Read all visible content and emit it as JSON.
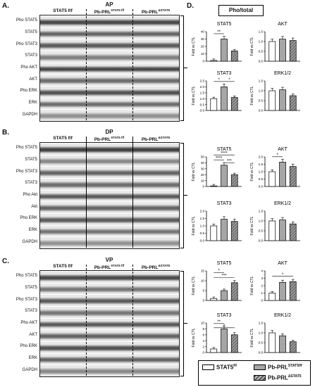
{
  "panels": {
    "A": {
      "letter": "A.",
      "tissue": "AP",
      "groups": [
        "STAT5 f/f",
        "Pb-PRL",
        "STAT5 f/f",
        "Pb-PRL",
        "ΔSTAT5"
      ],
      "rows": [
        "Pho STAT5",
        "STAT5",
        "Pho STAT3",
        "STAT3",
        "Pho AKT",
        "AKT",
        "Pho ERK",
        "ERK",
        "GAPDH"
      ]
    },
    "B": {
      "letter": "B.",
      "tissue": "DP",
      "groups": [
        "STAT5 f/f",
        "Pb-PRL",
        "STAT5 f/f",
        "Pb-PRL",
        "ΔSTAT5"
      ],
      "rows": [
        "Pho STAT5",
        "STAT5",
        "Pho STAT3",
        "STAT3",
        "Pho Akt",
        "Akt",
        "Pho ERK",
        "ERK",
        "GAPDH"
      ]
    },
    "C": {
      "letter": "C.",
      "tissue": "VP",
      "groups": [
        "STAT5 f/f",
        "Pb-PRL",
        "STAT5 f/f",
        "Pb-PRL",
        "ΔSTAT5"
      ],
      "rows": [
        "Pho STAT5",
        "STAT5",
        "Pho STAT3",
        "STAT3",
        "Pho AKT",
        "AKT",
        "Pho ERK",
        "ERK",
        "GAPDH"
      ]
    },
    "D": {
      "letter": "D.",
      "title": "Pho/total"
    }
  },
  "axis_label": "Fold vs CTL",
  "legend": {
    "ctl": "STAT5",
    "ctl_sup": "f/f",
    "stat5ff": "Pb-PRL",
    "stat5ff_sup": "STAT5f/f",
    "d": "Pb-PRL",
    "d_sup": "ΔSTAT5"
  },
  "colors": {
    "ctl": "#ffffff",
    "stat5ff": "#a6a6a6",
    "d": "#6e6e6e"
  },
  "chart_data": [
    {
      "type": "bar",
      "title": "STAT5",
      "tissue": "AP",
      "categories": [
        "STAT5 f/f",
        "Pb-PRL STAT5f/f",
        "Pb-PRL ΔSTAT5"
      ],
      "values": [
        1,
        30,
        14
      ],
      "ylim": [
        0,
        40
      ],
      "yticks": [
        0,
        10,
        20,
        30,
        40
      ],
      "sig": [
        "**"
      ]
    },
    {
      "type": "bar",
      "title": "AKT",
      "tissue": "AP",
      "categories": [
        "STAT5 f/f",
        "Pb-PRL STAT5f/f",
        "Pb-PRL ΔSTAT5"
      ],
      "values": [
        1.0,
        1.12,
        1.05
      ],
      "ylim": [
        0,
        1.5
      ],
      "yticks": [
        0,
        0.5,
        1.0,
        1.5
      ],
      "sig": []
    },
    {
      "type": "bar",
      "title": "STAT3",
      "tissue": "AP",
      "categories": [
        "STAT5 f/f",
        "Pb-PRL STAT5f/f",
        "Pb-PRL ΔSTAT5"
      ],
      "values": [
        1.0,
        2.0,
        1.1
      ],
      "ylim": [
        0,
        2.5
      ],
      "yticks": [
        0,
        0.5,
        1.0,
        1.5,
        2.0,
        2.5
      ],
      "sig": [
        "*",
        "*"
      ]
    },
    {
      "type": "bar",
      "title": "ERK1/2",
      "tissue": "AP",
      "categories": [
        "STAT5 f/f",
        "Pb-PRL STAT5f/f",
        "Pb-PRL ΔSTAT5"
      ],
      "values": [
        1.0,
        1.05,
        0.75
      ],
      "ylim": [
        0,
        1.5
      ],
      "yticks": [
        0,
        0.5,
        1.0,
        1.5
      ],
      "sig": []
    },
    {
      "type": "bar",
      "title": "STAT5",
      "tissue": "DP",
      "categories": [
        "STAT5 f/f",
        "Pb-PRL STAT5f/f",
        "Pb-PRL ΔSTAT5"
      ],
      "values": [
        1,
        36,
        20
      ],
      "ylim": [
        0,
        50
      ],
      "yticks": [
        0,
        10,
        20,
        30,
        40,
        50
      ],
      "sig": [
        "****",
        "****",
        "***"
      ]
    },
    {
      "type": "bar",
      "title": "AKT",
      "tissue": "DP",
      "categories": [
        "STAT5 f/f",
        "Pb-PRL STAT5f/f",
        "Pb-PRL ΔSTAT5"
      ],
      "values": [
        1.0,
        1.65,
        1.35
      ],
      "ylim": [
        0,
        2.0
      ],
      "yticks": [
        0,
        0.5,
        1.0,
        1.5,
        2.0
      ],
      "sig": [
        "*"
      ]
    },
    {
      "type": "bar",
      "title": "STAT3",
      "tissue": "DP",
      "categories": [
        "STAT5 f/f",
        "Pb-PRL STAT5f/f",
        "Pb-PRL ΔSTAT5"
      ],
      "values": [
        1.0,
        1.45,
        1.3
      ],
      "ylim": [
        0,
        2.0
      ],
      "yticks": [
        0,
        0.5,
        1.0,
        1.5,
        2.0
      ],
      "sig": []
    },
    {
      "type": "bar",
      "title": "ERK1/2",
      "tissue": "DP",
      "categories": [
        "STAT5 f/f",
        "Pb-PRL STAT5f/f",
        "Pb-PRL ΔSTAT5"
      ],
      "values": [
        1.0,
        1.05,
        0.85
      ],
      "ylim": [
        0,
        1.5
      ],
      "yticks": [
        0,
        0.5,
        1.0,
        1.5
      ],
      "sig": []
    },
    {
      "type": "bar",
      "title": "STAT5",
      "tissue": "VP",
      "categories": [
        "STAT5 f/f",
        "Pb-PRL STAT5f/f",
        "Pb-PRL ΔSTAT5"
      ],
      "values": [
        1,
        5,
        9
      ],
      "ylim": [
        0,
        15
      ],
      "yticks": [
        0,
        5,
        10,
        15
      ],
      "sig": [
        "***",
        "*"
      ]
    },
    {
      "type": "bar",
      "title": "AKT",
      "tissue": "VP",
      "categories": [
        "STAT5 f/f",
        "Pb-PRL STAT5f/f",
        "Pb-PRL ΔSTAT5"
      ],
      "values": [
        1.0,
        2.45,
        2.55
      ],
      "ylim": [
        0,
        4
      ],
      "yticks": [
        0,
        1,
        2,
        3,
        4
      ],
      "sig": [
        "*"
      ]
    },
    {
      "type": "bar",
      "title": "STAT3",
      "tissue": "VP",
      "categories": [
        "STAT5 f/f",
        "Pb-PRL STAT5f/f",
        "Pb-PRL ΔSTAT5"
      ],
      "values": [
        1.2,
        8.0,
        6.0
      ],
      "ylim": [
        0,
        10
      ],
      "yticks": [
        0,
        2,
        4,
        6,
        8,
        10
      ],
      "sig": [
        "**",
        "*"
      ]
    },
    {
      "type": "bar",
      "title": "ERK1/2",
      "tissue": "VP",
      "categories": [
        "STAT5 f/f",
        "Pb-PRL STAT5f/f",
        "Pb-PRL ΔSTAT5"
      ],
      "values": [
        1.0,
        0.85,
        0.55
      ],
      "ylim": [
        0,
        1.5
      ],
      "yticks": [
        0,
        0.5,
        1.0,
        1.5
      ],
      "sig": []
    }
  ]
}
